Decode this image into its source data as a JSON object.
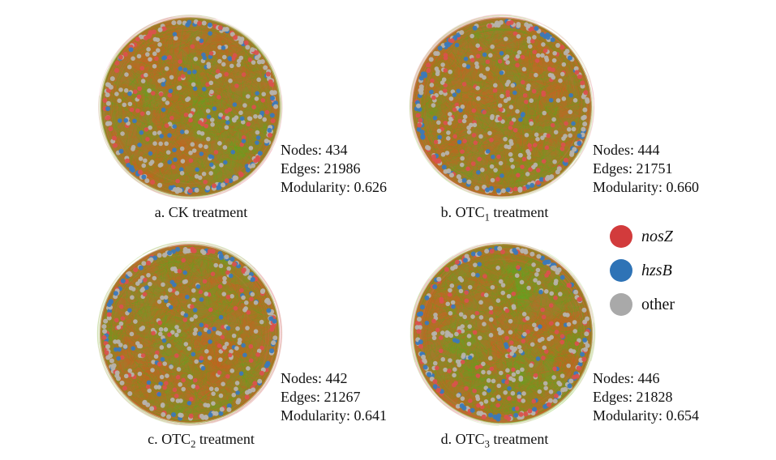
{
  "figure": {
    "panels": [
      {
        "id": "a",
        "caption": {
          "pre": "a. CK treatment",
          "sub": "",
          "post": ""
        },
        "stats": {
          "nodes": "434",
          "edges": "21986",
          "modularity": "0.626"
        }
      },
      {
        "id": "b",
        "caption": {
          "pre": "b. OTC",
          "sub": "1",
          "post": " treatment"
        },
        "stats": {
          "nodes": "444",
          "edges": "21751",
          "modularity": "0.660"
        }
      },
      {
        "id": "c",
        "caption": {
          "pre": "c. OTC",
          "sub": "2",
          "post": " treatment"
        },
        "stats": {
          "nodes": "442",
          "edges": "21267",
          "modularity": "0.641"
        }
      },
      {
        "id": "d",
        "caption": {
          "pre": "d. OTC",
          "sub": "3",
          "post": " treatment"
        },
        "stats": {
          "nodes": "446",
          "edges": "21828",
          "modularity": "0.654"
        }
      }
    ],
    "stats_labels": {
      "nodes": "Nodes:",
      "edges": "Edges:",
      "modularity": "Modularity:"
    },
    "legend": [
      {
        "label": "nosZ",
        "color": "#d23b3c",
        "italic": true
      },
      {
        "label": "hzsB",
        "color": "#2e73b6",
        "italic": true
      },
      {
        "label": "other",
        "color": "#a9a9a9",
        "italic": false
      }
    ],
    "network_colors": {
      "node_nosZ": "#da524d",
      "node_hzsB": "#3b79b9",
      "node_other": "#b7b3ac",
      "edge_green": "#55ad1d",
      "edge_orange": "#d45c20",
      "halo_pink": "#f0b6bd",
      "halo_green": "#bfe09a",
      "base_olive": "#a07b2a"
    }
  }
}
